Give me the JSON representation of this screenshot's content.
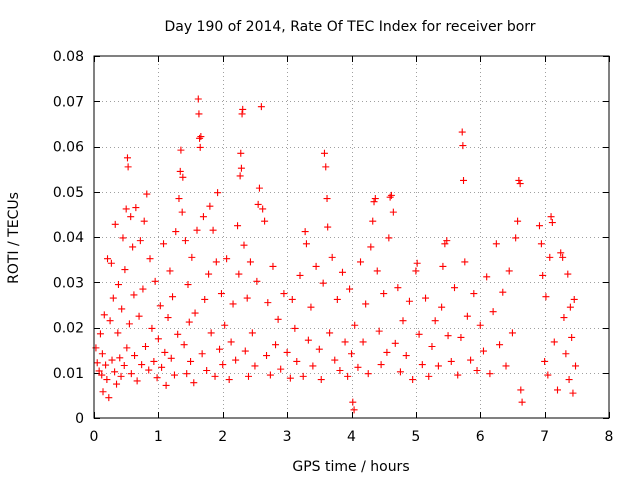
{
  "chart_data": {
    "type": "scatter",
    "title": "Day 190 of 2014, Rate Of TEC Index for receiver borr",
    "xlabel": "GPS time / hours",
    "ylabel": "ROTI / TECUs",
    "xlim": [
      0,
      8
    ],
    "ylim": [
      0,
      0.08
    ],
    "x_ticks": [
      0,
      1,
      2,
      3,
      4,
      5,
      6,
      7,
      8
    ],
    "x_tick_labels": [
      "0",
      "1",
      "2",
      "3",
      "4",
      "5",
      "6",
      "7",
      "8"
    ],
    "y_ticks": [
      0,
      0.01,
      0.02,
      0.03,
      0.04,
      0.05,
      0.06,
      0.07,
      0.08
    ],
    "y_tick_labels": [
      "0",
      "0.01",
      "0.02",
      "0.03",
      "0.04",
      "0.05",
      "0.06",
      "0.07",
      "0.08"
    ],
    "grid": true,
    "marker": "+",
    "colors": {
      "marker": "#ff0000",
      "axis": "#000000",
      "grid": "#a0a0a0"
    },
    "series": [
      {
        "name": "ROTI",
        "color": "#ff0000",
        "points": [
          [
            0.03,
            0.0155
          ],
          [
            0.05,
            0.0122
          ],
          [
            0.08,
            0.0104
          ],
          [
            0.1,
            0.0186
          ],
          [
            0.12,
            0.0095
          ],
          [
            0.13,
            0.0142
          ],
          [
            0.14,
            0.0058
          ],
          [
            0.16,
            0.0228
          ],
          [
            0.18,
            0.0117
          ],
          [
            0.2,
            0.0085
          ],
          [
            0.21,
            0.0352
          ],
          [
            0.23,
            0.0045
          ],
          [
            0.25,
            0.0215
          ],
          [
            0.27,
            0.0342
          ],
          [
            0.28,
            0.0128
          ],
          [
            0.3,
            0.0265
          ],
          [
            0.32,
            0.0102
          ],
          [
            0.33,
            0.0428
          ],
          [
            0.35,
            0.0075
          ],
          [
            0.37,
            0.0188
          ],
          [
            0.38,
            0.0295
          ],
          [
            0.4,
            0.0133
          ],
          [
            0.42,
            0.0092
          ],
          [
            0.43,
            0.0241
          ],
          [
            0.45,
            0.0398
          ],
          [
            0.47,
            0.0116
          ],
          [
            0.48,
            0.0328
          ],
          [
            0.5,
            0.0462
          ],
          [
            0.51,
            0.0155
          ],
          [
            0.52,
            0.0575
          ],
          [
            0.53,
            0.0555
          ],
          [
            0.55,
            0.0208
          ],
          [
            0.57,
            0.0445
          ],
          [
            0.58,
            0.0098
          ],
          [
            0.6,
            0.0378
          ],
          [
            0.62,
            0.0272
          ],
          [
            0.63,
            0.0138
          ],
          [
            0.65,
            0.0465
          ],
          [
            0.67,
            0.0082
          ],
          [
            0.7,
            0.0225
          ],
          [
            0.72,
            0.0392
          ],
          [
            0.74,
            0.0118
          ],
          [
            0.76,
            0.0285
          ],
          [
            0.78,
            0.0435
          ],
          [
            0.8,
            0.0158
          ],
          [
            0.82,
            0.0495
          ],
          [
            0.85,
            0.0106
          ],
          [
            0.87,
            0.0352
          ],
          [
            0.9,
            0.0198
          ],
          [
            0.93,
            0.0125
          ],
          [
            0.95,
            0.0302
          ],
          [
            0.98,
            0.0089
          ],
          [
            1.0,
            0.0175
          ],
          [
            1.03,
            0.0248
          ],
          [
            1.05,
            0.0112
          ],
          [
            1.08,
            0.0385
          ],
          [
            1.1,
            0.0145
          ],
          [
            1.12,
            0.0072
          ],
          [
            1.15,
            0.0222
          ],
          [
            1.18,
            0.0325
          ],
          [
            1.2,
            0.0132
          ],
          [
            1.22,
            0.0268
          ],
          [
            1.25,
            0.0095
          ],
          [
            1.27,
            0.0412
          ],
          [
            1.3,
            0.0185
          ],
          [
            1.32,
            0.0485
          ],
          [
            1.34,
            0.0545
          ],
          [
            1.35,
            0.0592
          ],
          [
            1.37,
            0.0455
          ],
          [
            1.38,
            0.0532
          ],
          [
            1.4,
            0.0162
          ],
          [
            1.42,
            0.0392
          ],
          [
            1.44,
            0.0098
          ],
          [
            1.46,
            0.0295
          ],
          [
            1.48,
            0.0212
          ],
          [
            1.5,
            0.0125
          ],
          [
            1.52,
            0.0355
          ],
          [
            1.55,
            0.0078
          ],
          [
            1.57,
            0.0232
          ],
          [
            1.6,
            0.0415
          ],
          [
            1.62,
            0.0705
          ],
          [
            1.63,
            0.0672
          ],
          [
            1.64,
            0.0618
          ],
          [
            1.65,
            0.0598
          ],
          [
            1.66,
            0.0622
          ],
          [
            1.68,
            0.0142
          ],
          [
            1.7,
            0.0445
          ],
          [
            1.72,
            0.0262
          ],
          [
            1.75,
            0.0105
          ],
          [
            1.78,
            0.0318
          ],
          [
            1.8,
            0.0468
          ],
          [
            1.82,
            0.0188
          ],
          [
            1.85,
            0.0415
          ],
          [
            1.88,
            0.0092
          ],
          [
            1.9,
            0.0345
          ],
          [
            1.92,
            0.0498
          ],
          [
            1.95,
            0.0152
          ],
          [
            1.98,
            0.0275
          ],
          [
            2.0,
            0.0118
          ],
          [
            2.03,
            0.0205
          ],
          [
            2.06,
            0.0352
          ],
          [
            2.1,
            0.0085
          ],
          [
            2.13,
            0.0168
          ],
          [
            2.16,
            0.0252
          ],
          [
            2.2,
            0.0128
          ],
          [
            2.23,
            0.0425
          ],
          [
            2.25,
            0.0318
          ],
          [
            2.27,
            0.0535
          ],
          [
            2.28,
            0.0585
          ],
          [
            2.29,
            0.0552
          ],
          [
            2.3,
            0.0672
          ],
          [
            2.31,
            0.0682
          ],
          [
            2.33,
            0.0382
          ],
          [
            2.35,
            0.0148
          ],
          [
            2.38,
            0.0265
          ],
          [
            2.4,
            0.0092
          ],
          [
            2.43,
            0.0345
          ],
          [
            2.46,
            0.0188
          ],
          [
            2.5,
            0.0115
          ],
          [
            2.53,
            0.0302
          ],
          [
            2.55,
            0.0472
          ],
          [
            2.57,
            0.0508
          ],
          [
            2.6,
            0.0688
          ],
          [
            2.62,
            0.0462
          ],
          [
            2.65,
            0.0435
          ],
          [
            2.68,
            0.0138
          ],
          [
            2.7,
            0.0255
          ],
          [
            2.74,
            0.0095
          ],
          [
            2.78,
            0.0335
          ],
          [
            2.82,
            0.0162
          ],
          [
            2.86,
            0.0218
          ],
          [
            2.9,
            0.0108
          ],
          [
            2.95,
            0.0275
          ],
          [
            3.0,
            0.0145
          ],
          [
            3.05,
            0.0088
          ],
          [
            3.08,
            0.0262
          ],
          [
            3.12,
            0.0198
          ],
          [
            3.15,
            0.0125
          ],
          [
            3.2,
            0.0315
          ],
          [
            3.25,
            0.0092
          ],
          [
            3.28,
            0.0412
          ],
          [
            3.3,
            0.0385
          ],
          [
            3.33,
            0.0172
          ],
          [
            3.37,
            0.0245
          ],
          [
            3.4,
            0.0115
          ],
          [
            3.45,
            0.0335
          ],
          [
            3.5,
            0.0152
          ],
          [
            3.53,
            0.0085
          ],
          [
            3.56,
            0.0298
          ],
          [
            3.58,
            0.0585
          ],
          [
            3.6,
            0.0555
          ],
          [
            3.62,
            0.0485
          ],
          [
            3.63,
            0.0422
          ],
          [
            3.66,
            0.0188
          ],
          [
            3.7,
            0.0355
          ],
          [
            3.74,
            0.0128
          ],
          [
            3.78,
            0.0262
          ],
          [
            3.82,
            0.0105
          ],
          [
            3.86,
            0.0322
          ],
          [
            3.9,
            0.0168
          ],
          [
            3.94,
            0.0092
          ],
          [
            3.97,
            0.0285
          ],
          [
            4.0,
            0.0142
          ],
          [
            4.02,
            0.0035
          ],
          [
            4.04,
            0.0018
          ],
          [
            4.05,
            0.0205
          ],
          [
            4.1,
            0.0112
          ],
          [
            4.14,
            0.0345
          ],
          [
            4.18,
            0.0168
          ],
          [
            4.22,
            0.0252
          ],
          [
            4.26,
            0.0098
          ],
          [
            4.3,
            0.0378
          ],
          [
            4.33,
            0.0435
          ],
          [
            4.35,
            0.0478
          ],
          [
            4.37,
            0.0485
          ],
          [
            4.4,
            0.0325
          ],
          [
            4.43,
            0.0192
          ],
          [
            4.46,
            0.0118
          ],
          [
            4.5,
            0.0275
          ],
          [
            4.55,
            0.0145
          ],
          [
            4.58,
            0.0398
          ],
          [
            4.6,
            0.0488
          ],
          [
            4.62,
            0.0492
          ],
          [
            4.65,
            0.0455
          ],
          [
            4.68,
            0.0165
          ],
          [
            4.72,
            0.0288
          ],
          [
            4.76,
            0.0102
          ],
          [
            4.8,
            0.0215
          ],
          [
            4.85,
            0.0138
          ],
          [
            4.9,
            0.0258
          ],
          [
            4.95,
            0.0085
          ],
          [
            5.0,
            0.0325
          ],
          [
            5.02,
            0.0342
          ],
          [
            5.05,
            0.0185
          ],
          [
            5.1,
            0.0118
          ],
          [
            5.15,
            0.0265
          ],
          [
            5.2,
            0.0092
          ],
          [
            5.25,
            0.0158
          ],
          [
            5.3,
            0.0215
          ],
          [
            5.35,
            0.0115
          ],
          [
            5.4,
            0.0245
          ],
          [
            5.42,
            0.0335
          ],
          [
            5.45,
            0.0385
          ],
          [
            5.48,
            0.0392
          ],
          [
            5.5,
            0.0182
          ],
          [
            5.55,
            0.0125
          ],
          [
            5.6,
            0.0288
          ],
          [
            5.65,
            0.0095
          ],
          [
            5.7,
            0.0178
          ],
          [
            5.72,
            0.0632
          ],
          [
            5.73,
            0.0602
          ],
          [
            5.74,
            0.0525
          ],
          [
            5.76,
            0.0345
          ],
          [
            5.8,
            0.0225
          ],
          [
            5.85,
            0.0128
          ],
          [
            5.9,
            0.0275
          ],
          [
            5.95,
            0.0105
          ],
          [
            6.0,
            0.0205
          ],
          [
            6.05,
            0.0148
          ],
          [
            6.1,
            0.0312
          ],
          [
            6.15,
            0.0098
          ],
          [
            6.2,
            0.0235
          ],
          [
            6.25,
            0.0385
          ],
          [
            6.3,
            0.0162
          ],
          [
            6.35,
            0.0278
          ],
          [
            6.4,
            0.0115
          ],
          [
            6.45,
            0.0325
          ],
          [
            6.5,
            0.0188
          ],
          [
            6.55,
            0.0398
          ],
          [
            6.58,
            0.0435
          ],
          [
            6.6,
            0.0525
          ],
          [
            6.62,
            0.0518
          ],
          [
            6.63,
            0.0062
          ],
          [
            6.65,
            0.0035
          ],
          [
            6.92,
            0.0425
          ],
          [
            6.95,
            0.0385
          ],
          [
            6.97,
            0.0315
          ],
          [
            7.0,
            0.0125
          ],
          [
            7.02,
            0.0268
          ],
          [
            7.05,
            0.0095
          ],
          [
            7.08,
            0.0355
          ],
          [
            7.1,
            0.0445
          ],
          [
            7.12,
            0.0432
          ],
          [
            7.15,
            0.0168
          ],
          [
            7.2,
            0.0062
          ],
          [
            7.25,
            0.0365
          ],
          [
            7.28,
            0.0355
          ],
          [
            7.3,
            0.0222
          ],
          [
            7.33,
            0.0142
          ],
          [
            7.36,
            0.0318
          ],
          [
            7.38,
            0.0085
          ],
          [
            7.4,
            0.0245
          ],
          [
            7.42,
            0.0178
          ],
          [
            7.44,
            0.0055
          ],
          [
            7.46,
            0.0262
          ],
          [
            7.48,
            0.0115
          ]
        ]
      }
    ]
  }
}
